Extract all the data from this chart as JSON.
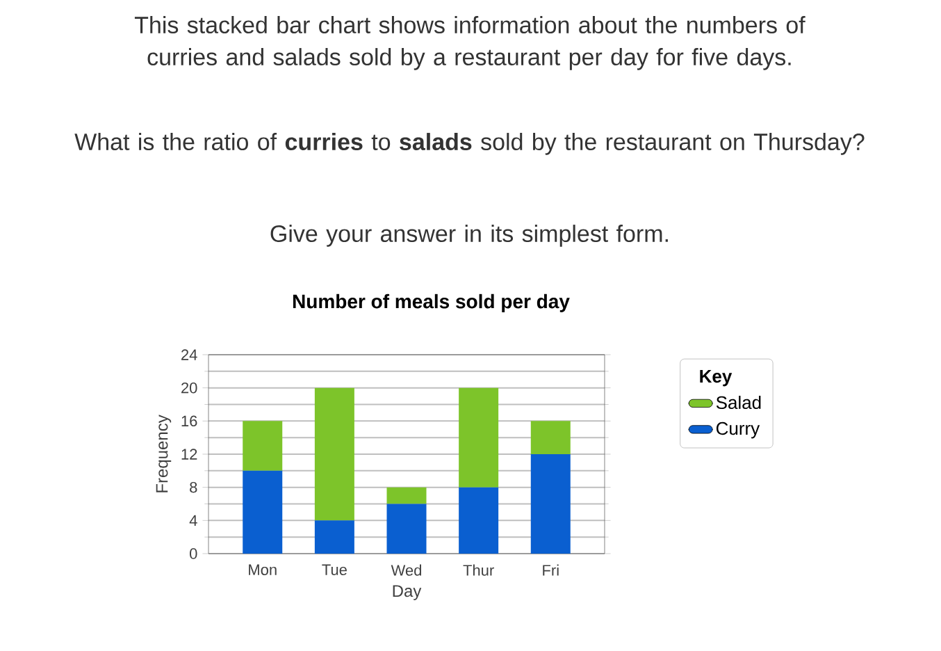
{
  "chart_data": {
    "type": "bar",
    "title": "Number of meals sold per day",
    "annotations": [
      "This stacked bar chart shows information about the numbers of curries and salads sold by a restaurant per day for five days.",
      "What is the ratio of **curries** to **salads** sold by the restaurant on Thursday?",
      "Give your answer in its simplest form."
    ],
    "xlabel": "Day",
    "ylabel": "Frequency",
    "legend_title": "Key",
    "categories": [
      "Mon",
      "Tue",
      "Wed",
      "Thur",
      "Fri"
    ],
    "series": [
      {
        "name": "Curry",
        "color": "#0a5fd0",
        "values": [
          10,
          4,
          6,
          8,
          12
        ]
      },
      {
        "name": "Salad",
        "color": "#7dc42a",
        "values": [
          6,
          16,
          2,
          12,
          4
        ]
      }
    ],
    "stacked": true,
    "ylim": [
      0,
      24
    ],
    "yticks": [
      0,
      4,
      8,
      12,
      16,
      20,
      24
    ],
    "grid": "y",
    "legend": "right"
  }
}
